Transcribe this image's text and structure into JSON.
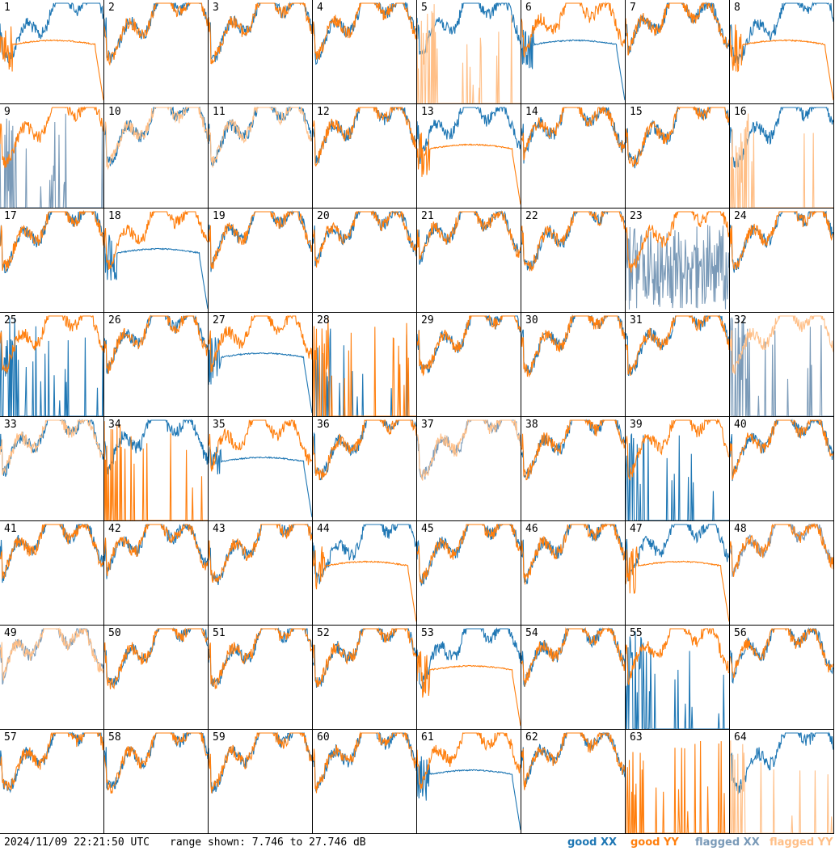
{
  "footer": {
    "timestamp": "2024/11/09 22:21:50 UTC",
    "range_text": "range shown: 7.746 to 27.746 dB"
  },
  "legend": [
    {
      "label": "good XX",
      "color": "#1f77b4"
    },
    {
      "label": "good YY",
      "color": "#ff7f0e"
    },
    {
      "label": "flagged XX",
      "color": "#7a9ab8"
    },
    {
      "label": "flagged YY",
      "color": "#ffbf87"
    }
  ],
  "chart_data": {
    "type": "line",
    "ylim": [
      7.746,
      27.746
    ],
    "grid": false,
    "legend_placement": "bottom-right",
    "panels": [
      {
        "label": "1",
        "xx": "good",
        "yy": "good",
        "xx_pattern": "normal",
        "yy_pattern": "smooth"
      },
      {
        "label": "2",
        "xx": "good",
        "yy": "good",
        "xx_pattern": "normal",
        "yy_pattern": "normal"
      },
      {
        "label": "3",
        "xx": "good",
        "yy": "good",
        "xx_pattern": "normal",
        "yy_pattern": "normal"
      },
      {
        "label": "4",
        "xx": "good",
        "yy": "good",
        "xx_pattern": "normal",
        "yy_pattern": "normal"
      },
      {
        "label": "5",
        "xx": "good",
        "yy": "flagged",
        "xx_pattern": "normal",
        "yy_pattern": "spikes"
      },
      {
        "label": "6",
        "xx": "good",
        "yy": "good",
        "xx_pattern": "smooth",
        "yy_pattern": "normal"
      },
      {
        "label": "7",
        "xx": "good",
        "yy": "good",
        "xx_pattern": "normal",
        "yy_pattern": "normal"
      },
      {
        "label": "8",
        "xx": "good",
        "yy": "good",
        "xx_pattern": "normal",
        "yy_pattern": "smooth"
      },
      {
        "label": "9",
        "xx": "flagged",
        "yy": "good",
        "xx_pattern": "spikes",
        "yy_pattern": "normal"
      },
      {
        "label": "10",
        "xx": "good",
        "yy": "flagged",
        "xx_pattern": "normal",
        "yy_pattern": "normal"
      },
      {
        "label": "11",
        "xx": "good",
        "yy": "flagged",
        "xx_pattern": "normal",
        "yy_pattern": "normal"
      },
      {
        "label": "12",
        "xx": "good",
        "yy": "good",
        "xx_pattern": "normal",
        "yy_pattern": "normal"
      },
      {
        "label": "13",
        "xx": "good",
        "yy": "good",
        "xx_pattern": "normal",
        "yy_pattern": "smooth"
      },
      {
        "label": "14",
        "xx": "good",
        "yy": "good",
        "xx_pattern": "normal",
        "yy_pattern": "normal"
      },
      {
        "label": "15",
        "xx": "good",
        "yy": "good",
        "xx_pattern": "normal",
        "yy_pattern": "normal"
      },
      {
        "label": "16",
        "xx": "good",
        "yy": "flagged",
        "xx_pattern": "normal",
        "yy_pattern": "spikes"
      },
      {
        "label": "17",
        "xx": "good",
        "yy": "good",
        "xx_pattern": "normal",
        "yy_pattern": "normal"
      },
      {
        "label": "18",
        "xx": "good",
        "yy": "good",
        "xx_pattern": "smooth",
        "yy_pattern": "normal"
      },
      {
        "label": "19",
        "xx": "good",
        "yy": "good",
        "xx_pattern": "normal",
        "yy_pattern": "normal"
      },
      {
        "label": "20",
        "xx": "good",
        "yy": "good",
        "xx_pattern": "normal",
        "yy_pattern": "normal"
      },
      {
        "label": "21",
        "xx": "good",
        "yy": "good",
        "xx_pattern": "normal",
        "yy_pattern": "normal"
      },
      {
        "label": "22",
        "xx": "good",
        "yy": "good",
        "xx_pattern": "normal",
        "yy_pattern": "normal"
      },
      {
        "label": "23",
        "xx": "flagged",
        "yy": "good",
        "xx_pattern": "noisy",
        "yy_pattern": "normal"
      },
      {
        "label": "24",
        "xx": "good",
        "yy": "good",
        "xx_pattern": "normal",
        "yy_pattern": "normal"
      },
      {
        "label": "25",
        "xx": "good",
        "yy": "good",
        "xx_pattern": "spikes",
        "yy_pattern": "normal"
      },
      {
        "label": "26",
        "xx": "good",
        "yy": "good",
        "xx_pattern": "normal",
        "yy_pattern": "normal"
      },
      {
        "label": "27",
        "xx": "good",
        "yy": "good",
        "xx_pattern": "smooth",
        "yy_pattern": "normal"
      },
      {
        "label": "28",
        "xx": "good",
        "yy": "good",
        "xx_pattern": "spikes",
        "yy_pattern": "spikes"
      },
      {
        "label": "29",
        "xx": "good",
        "yy": "good",
        "xx_pattern": "normal",
        "yy_pattern": "normal"
      },
      {
        "label": "30",
        "xx": "good",
        "yy": "good",
        "xx_pattern": "normal",
        "yy_pattern": "normal"
      },
      {
        "label": "31",
        "xx": "good",
        "yy": "good",
        "xx_pattern": "normal",
        "yy_pattern": "normal"
      },
      {
        "label": "32",
        "xx": "flagged",
        "yy": "flagged",
        "xx_pattern": "spikes",
        "yy_pattern": "normal"
      },
      {
        "label": "33",
        "xx": "good",
        "yy": "flagged",
        "xx_pattern": "normal",
        "yy_pattern": "normal"
      },
      {
        "label": "34",
        "xx": "good",
        "yy": "good",
        "xx_pattern": "normal",
        "yy_pattern": "spikes"
      },
      {
        "label": "35",
        "xx": "good",
        "yy": "good",
        "xx_pattern": "smooth",
        "yy_pattern": "normal"
      },
      {
        "label": "36",
        "xx": "good",
        "yy": "good",
        "xx_pattern": "normal",
        "yy_pattern": "normal"
      },
      {
        "label": "37",
        "xx": "flagged",
        "yy": "flagged",
        "xx_pattern": "normal",
        "yy_pattern": "normal"
      },
      {
        "label": "38",
        "xx": "good",
        "yy": "good",
        "xx_pattern": "normal",
        "yy_pattern": "normal"
      },
      {
        "label": "39",
        "xx": "good",
        "yy": "good",
        "xx_pattern": "spikes",
        "yy_pattern": "normal"
      },
      {
        "label": "40",
        "xx": "good",
        "yy": "good",
        "xx_pattern": "normal",
        "yy_pattern": "normal"
      },
      {
        "label": "41",
        "xx": "good",
        "yy": "good",
        "xx_pattern": "normal",
        "yy_pattern": "normal"
      },
      {
        "label": "42",
        "xx": "good",
        "yy": "good",
        "xx_pattern": "normal",
        "yy_pattern": "normal"
      },
      {
        "label": "43",
        "xx": "good",
        "yy": "good",
        "xx_pattern": "normal",
        "yy_pattern": "normal"
      },
      {
        "label": "44",
        "xx": "good",
        "yy": "good",
        "xx_pattern": "normal",
        "yy_pattern": "smooth"
      },
      {
        "label": "45",
        "xx": "good",
        "yy": "good",
        "xx_pattern": "normal",
        "yy_pattern": "normal"
      },
      {
        "label": "46",
        "xx": "good",
        "yy": "good",
        "xx_pattern": "normal",
        "yy_pattern": "normal"
      },
      {
        "label": "47",
        "xx": "good",
        "yy": "good",
        "xx_pattern": "normal",
        "yy_pattern": "smooth"
      },
      {
        "label": "48",
        "xx": "flagged",
        "yy": "good",
        "xx_pattern": "normal",
        "yy_pattern": "normal"
      },
      {
        "label": "49",
        "xx": "flagged",
        "yy": "flagged",
        "xx_pattern": "normal",
        "yy_pattern": "normal"
      },
      {
        "label": "50",
        "xx": "good",
        "yy": "good",
        "xx_pattern": "normal",
        "yy_pattern": "normal"
      },
      {
        "label": "51",
        "xx": "good",
        "yy": "good",
        "xx_pattern": "normal",
        "yy_pattern": "normal"
      },
      {
        "label": "52",
        "xx": "good",
        "yy": "good",
        "xx_pattern": "normal",
        "yy_pattern": "normal"
      },
      {
        "label": "53",
        "xx": "good",
        "yy": "good",
        "xx_pattern": "normal",
        "yy_pattern": "smooth"
      },
      {
        "label": "54",
        "xx": "good",
        "yy": "good",
        "xx_pattern": "normal",
        "yy_pattern": "normal"
      },
      {
        "label": "55",
        "xx": "good",
        "yy": "good",
        "xx_pattern": "spikes",
        "yy_pattern": "normal"
      },
      {
        "label": "56",
        "xx": "good",
        "yy": "good",
        "xx_pattern": "normal",
        "yy_pattern": "normal"
      },
      {
        "label": "57",
        "xx": "good",
        "yy": "good",
        "xx_pattern": "normal",
        "yy_pattern": "normal"
      },
      {
        "label": "58",
        "xx": "good",
        "yy": "good",
        "xx_pattern": "normal",
        "yy_pattern": "normal"
      },
      {
        "label": "59",
        "xx": "good",
        "yy": "good",
        "xx_pattern": "normal",
        "yy_pattern": "normal"
      },
      {
        "label": "60",
        "xx": "good",
        "yy": "good",
        "xx_pattern": "normal",
        "yy_pattern": "normal"
      },
      {
        "label": "61",
        "xx": "good",
        "yy": "good",
        "xx_pattern": "smooth",
        "yy_pattern": "normal"
      },
      {
        "label": "62",
        "xx": "good",
        "yy": "good",
        "xx_pattern": "normal",
        "yy_pattern": "normal"
      },
      {
        "label": "63",
        "xx": "good",
        "yy": "good",
        "xx_pattern": "none",
        "yy_pattern": "spikes"
      },
      {
        "label": "64",
        "xx": "good",
        "yy": "flagged",
        "xx_pattern": "normal",
        "yy_pattern": "spikes"
      }
    ]
  }
}
